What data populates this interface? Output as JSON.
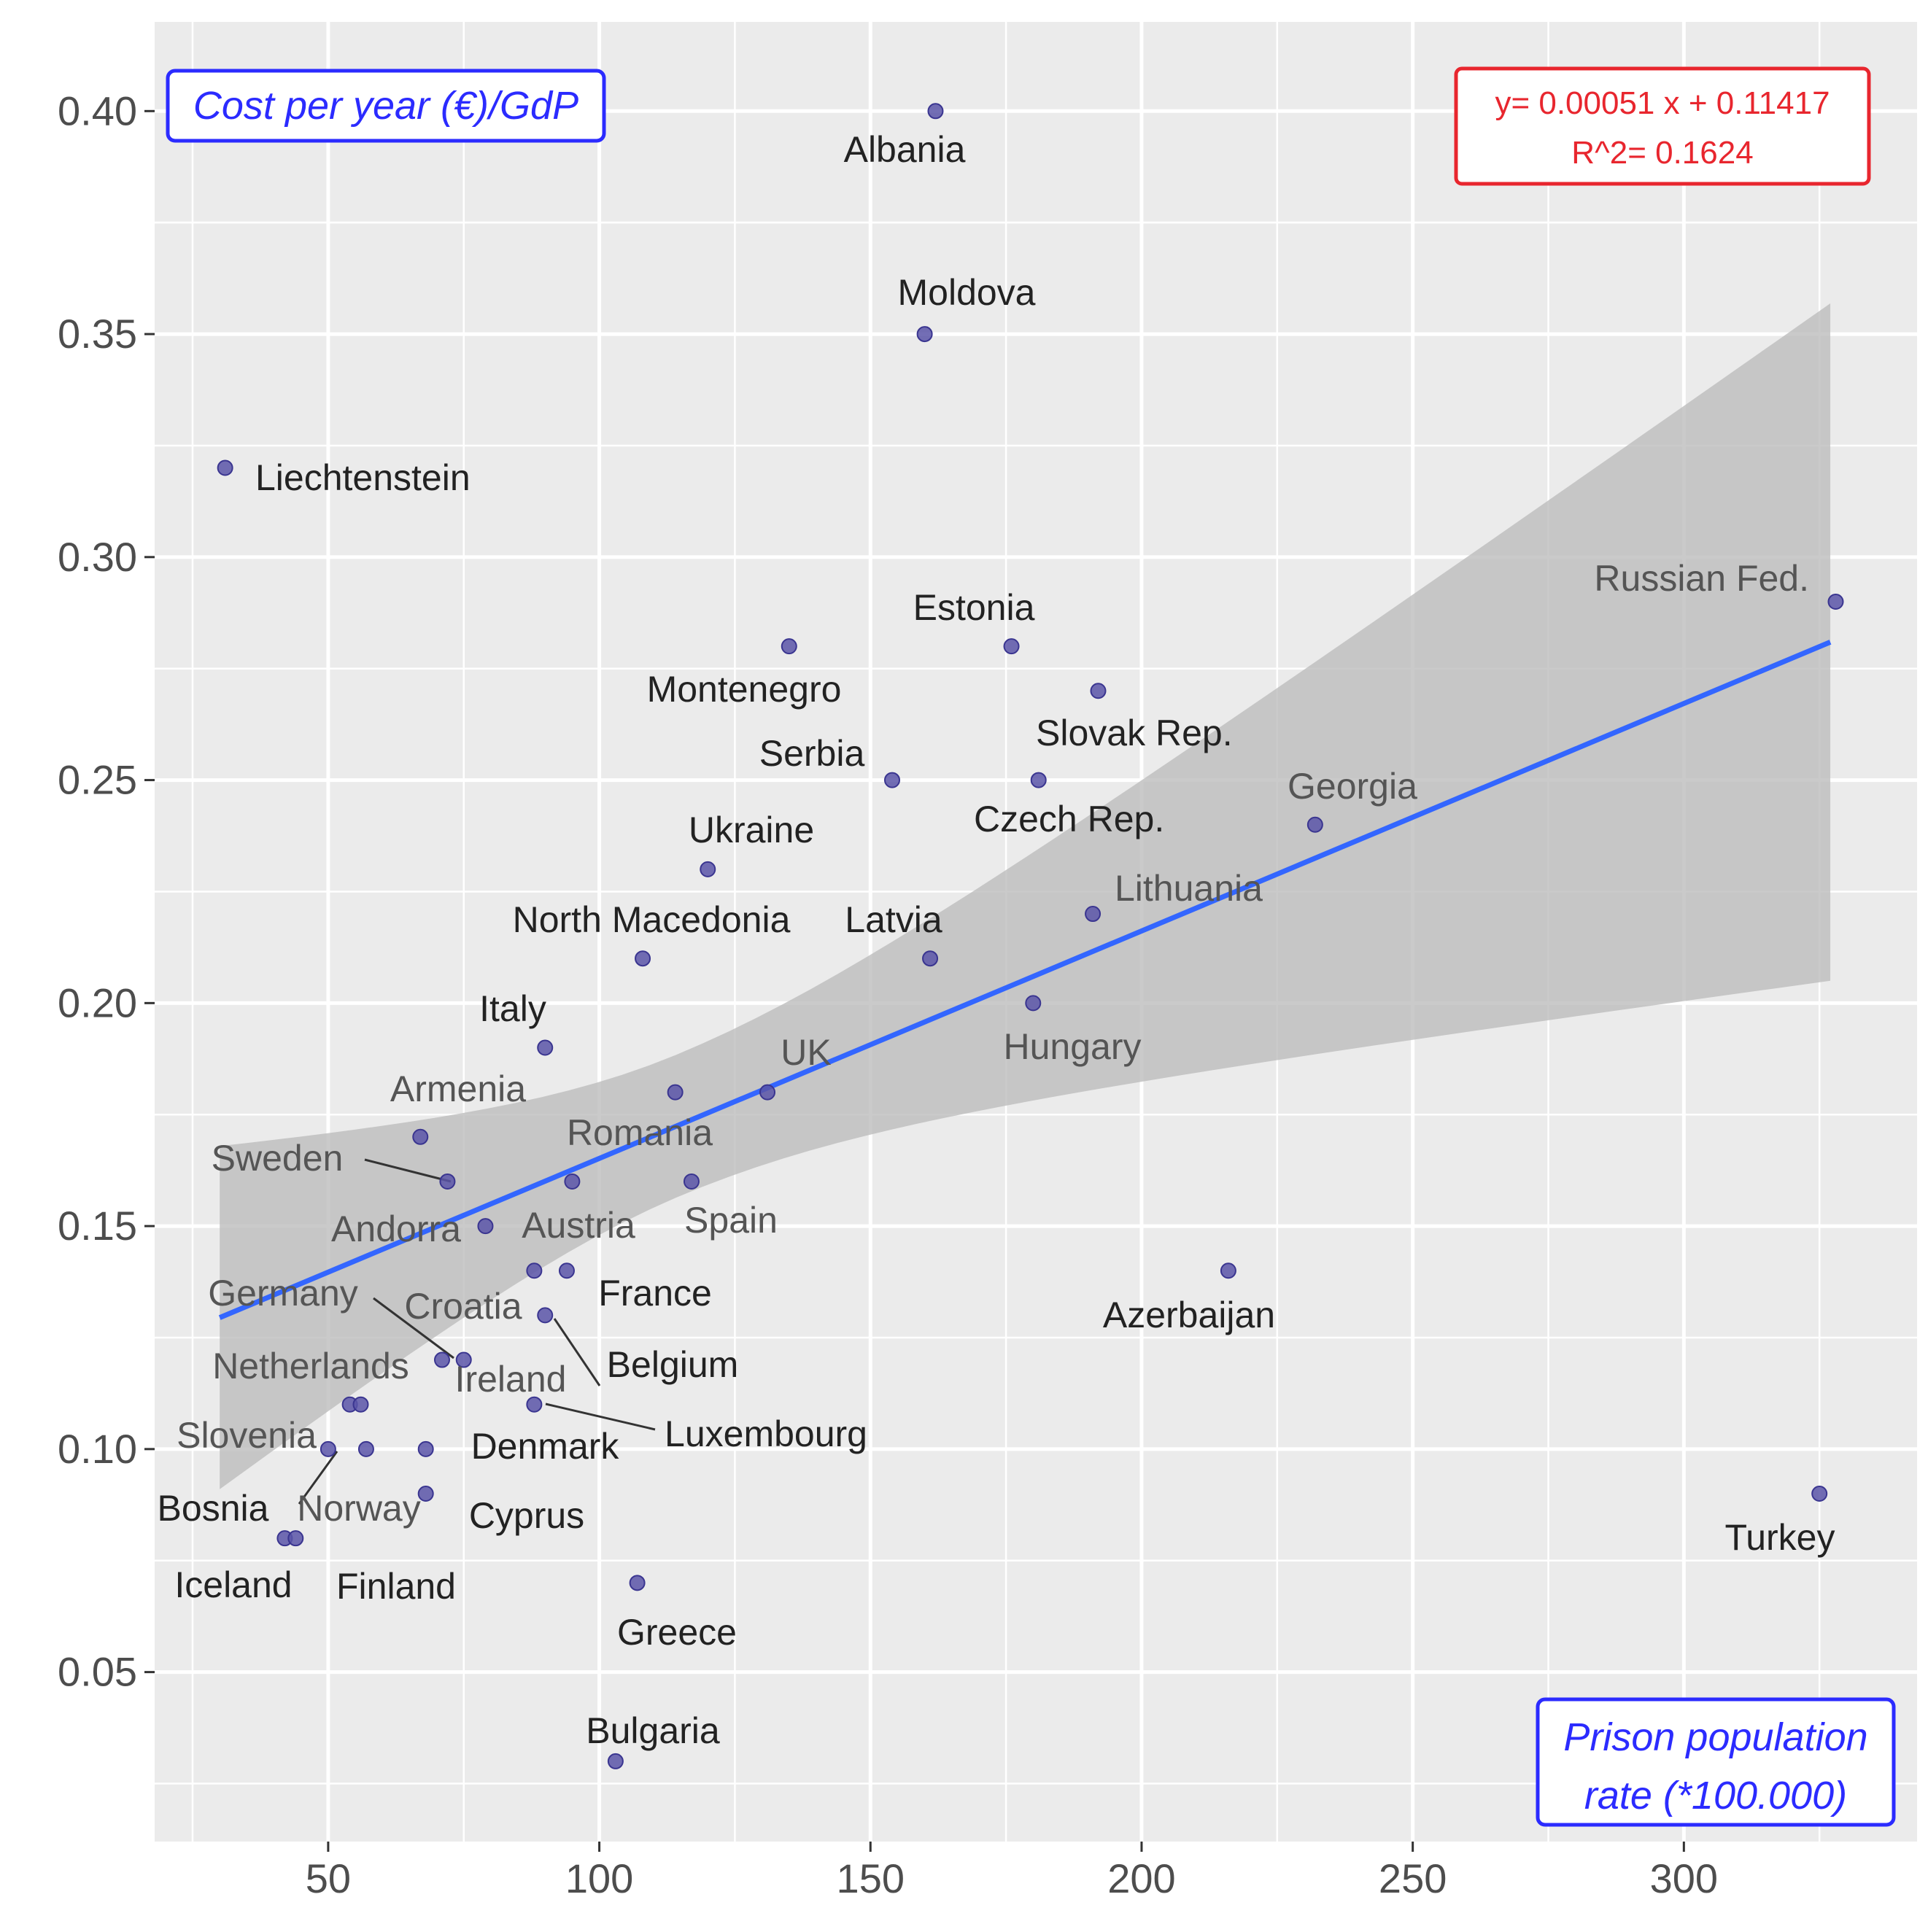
{
  "chart_data": {
    "type": "scatter",
    "x_axis_title": "Prison population rate (*100.000)",
    "x_axis_title_lines": [
      "Prison population",
      "rate (*100.000)"
    ],
    "y_axis_title": "Cost per year (€)/GdP",
    "xlim": [
      18,
      343
    ],
    "ylim": [
      0.012,
      0.42
    ],
    "x_ticks": [
      50,
      100,
      150,
      200,
      250,
      300
    ],
    "x_tick_labels": [
      "50",
      "100",
      "150",
      "200",
      "250",
      "300"
    ],
    "y_ticks": [
      0.05,
      0.1,
      0.15,
      0.2,
      0.25,
      0.3,
      0.35,
      0.4
    ],
    "y_tick_labels": [
      "0.05",
      "0.10",
      "0.15",
      "0.20",
      "0.25",
      "0.30",
      "0.35",
      "0.40"
    ],
    "grid": true,
    "background": "#ebebeb",
    "point_color": "#5a55a8",
    "line_color": "#3366ff",
    "ribbon_color": "#bdbdbd",
    "axis_box_color": "#2b2bff",
    "equation_color": "#e8262e",
    "regression": {
      "slope": 0.00051,
      "intercept": 0.11417,
      "r_squared": 0.1624,
      "x_range": [
        30,
        327
      ],
      "band_lower": [
        0.091,
        0.205
      ],
      "band_upper": [
        0.17,
        0.358
      ],
      "band_width_at_mean": 0.016,
      "x_mean": 115,
      "equation_line1": "y= 0.00051 x + 0.11417",
      "equation_line2": "R^2= 0.1624"
    },
    "points": [
      {
        "label": "Albania",
        "x": 162,
        "y": 0.4
      },
      {
        "label": "Moldova",
        "x": 160,
        "y": 0.35
      },
      {
        "label": "Liechtenstein",
        "x": 31,
        "y": 0.32
      },
      {
        "label": "Russian Fed.",
        "x": 328,
        "y": 0.29
      },
      {
        "label": "Montenegro",
        "x": 135,
        "y": 0.28
      },
      {
        "label": "Estonia",
        "x": 176,
        "y": 0.28
      },
      {
        "label": "Slovak Rep.",
        "x": 192,
        "y": 0.27
      },
      {
        "label": "Serbia",
        "x": 154,
        "y": 0.25
      },
      {
        "label": "Czech Rep.",
        "x": 181,
        "y": 0.25
      },
      {
        "label": "Georgia",
        "x": 232,
        "y": 0.24
      },
      {
        "label": "Ukraine",
        "x": 120,
        "y": 0.23
      },
      {
        "label": "Lithuania",
        "x": 191,
        "y": 0.22
      },
      {
        "label": "North Macedonia",
        "x": 108,
        "y": 0.21
      },
      {
        "label": "Latvia",
        "x": 161,
        "y": 0.21
      },
      {
        "label": "Hungary",
        "x": 180,
        "y": 0.2
      },
      {
        "label": "Italy",
        "x": 90,
        "y": 0.19
      },
      {
        "label": "UK",
        "x": 131,
        "y": 0.18
      },
      {
        "label": "Armenia",
        "x": 67,
        "y": 0.17
      },
      {
        "label": "Romania",
        "x": 114,
        "y": 0.18
      },
      {
        "label": "Sweden",
        "x": 72,
        "y": 0.16
      },
      {
        "label": "Spain",
        "x": 117,
        "y": 0.16
      },
      {
        "label": "Austria",
        "x": 95,
        "y": 0.16
      },
      {
        "label": "Andorra",
        "x": 79,
        "y": 0.15
      },
      {
        "label": "France",
        "x": 94,
        "y": 0.14
      },
      {
        "label": "Croatia",
        "x": 88,
        "y": 0.14
      },
      {
        "label": "Azerbaijan",
        "x": 216,
        "y": 0.14
      },
      {
        "label": "Germany",
        "x": 71,
        "y": 0.12
      },
      {
        "label": "Belgium",
        "x": 90,
        "y": 0.13
      },
      {
        "label": "Netherlands",
        "x": 54,
        "y": 0.11
      },
      {
        "label": "Ireland",
        "x": 75,
        "y": 0.12
      },
      {
        "label": "Luxembourg",
        "x": 88,
        "y": 0.11
      },
      {
        "label": "Slovenia",
        "x": 50,
        "y": 0.1
      },
      {
        "label": "Denmark",
        "x": 68,
        "y": 0.1
      },
      {
        "label": "Norway",
        "x": 57,
        "y": 0.1
      },
      {
        "label": "Cyprus",
        "x": 68,
        "y": 0.09
      },
      {
        "label": "Bosnia",
        "x": 42,
        "y": 0.08
      },
      {
        "label": "Iceland",
        "x": 44,
        "y": 0.08
      },
      {
        "label": "Turkey",
        "x": 325,
        "y": 0.09
      },
      {
        "label": "Greece",
        "x": 107,
        "y": 0.07
      },
      {
        "label": "Finland",
        "x": 56,
        "y": 0.11
      },
      {
        "label": "Bulgaria",
        "x": 103,
        "y": 0.03
      }
    ]
  }
}
